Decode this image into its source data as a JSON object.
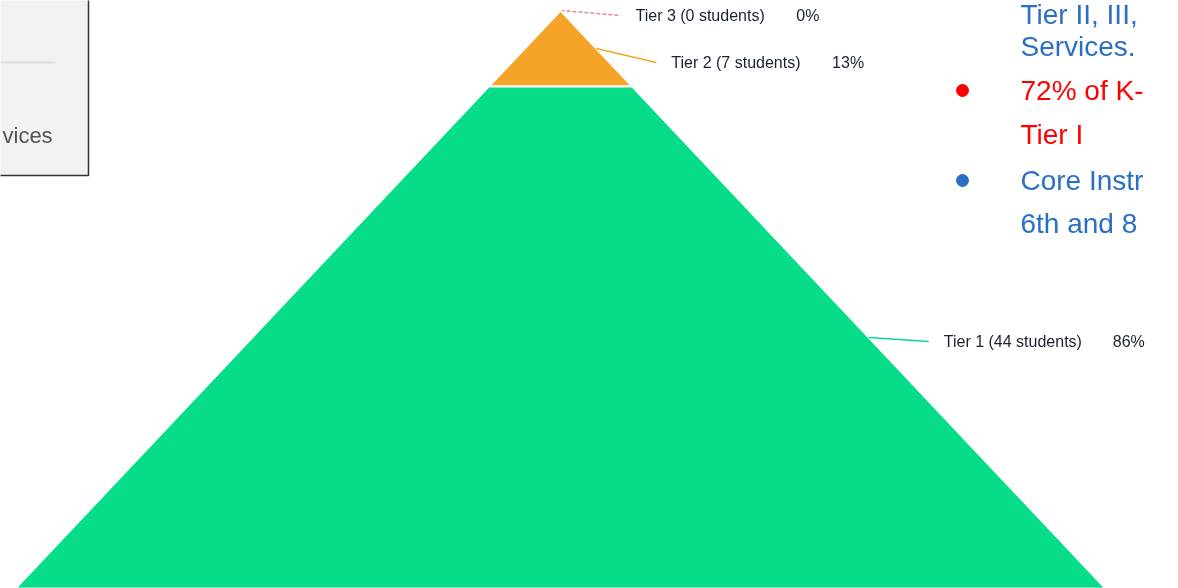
{
  "chart_data": {
    "type": "other",
    "categories": [
      "Tier 3 (0 students)",
      "Tier 2 (7 students)",
      "Tier 1 (44 students)"
    ],
    "values": [
      0,
      13,
      86
    ],
    "value_labels": [
      "0%",
      "13%",
      "86%"
    ],
    "colors": [
      "#e8869a",
      "#f4a527",
      "#07dc89"
    ],
    "annotations": [
      "Tier II, III,",
      "Services.",
      "72% of K-",
      "Tier I",
      "Core Instr",
      "6th and 8",
      "vices"
    ]
  }
}
